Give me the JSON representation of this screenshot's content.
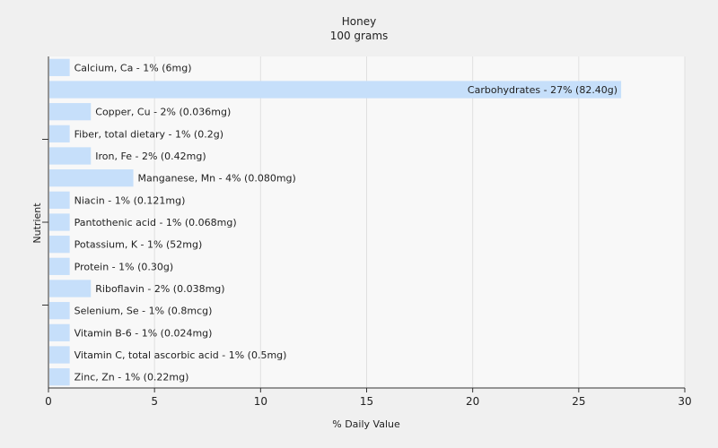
{
  "chart_data": {
    "type": "bar",
    "orientation": "horizontal",
    "title": "Honey",
    "subtitle": "100 grams",
    "xlabel": "% Daily Value",
    "ylabel": "Nutrient",
    "xlim": [
      0,
      30
    ],
    "xticks": [
      0,
      5,
      10,
      15,
      20,
      25,
      30
    ],
    "grid": true,
    "legend": "none",
    "colors": {
      "bar": "#c6dffa",
      "plot_bg": "#f8f8f8",
      "page_bg": "#f0f0f0",
      "grid": "#e0e0e0",
      "axis": "#333333"
    },
    "categories": [
      "Calcium, Ca",
      "Carbohydrates",
      "Copper, Cu",
      "Fiber, total dietary",
      "Iron, Fe",
      "Manganese, Mn",
      "Niacin",
      "Pantothenic acid",
      "Potassium, K",
      "Protein",
      "Riboflavin",
      "Selenium, Se",
      "Vitamin B-6",
      "Vitamin C, total ascorbic acid",
      "Zinc, Zn"
    ],
    "values": [
      1,
      27,
      2,
      1,
      2,
      4,
      1,
      1,
      1,
      1,
      2,
      1,
      1,
      1,
      1
    ],
    "labels": [
      "Calcium, Ca - 1% (6mg)",
      "Carbohydrates - 27% (82.40g)",
      "Copper, Cu - 2% (0.036mg)",
      "Fiber, total dietary - 1% (0.2g)",
      "Iron, Fe - 2% (0.42mg)",
      "Manganese, Mn - 4% (0.080mg)",
      "Niacin - 1% (0.121mg)",
      "Pantothenic acid - 1% (0.068mg)",
      "Potassium, K - 1% (52mg)",
      "Protein - 1% (0.30g)",
      "Riboflavin - 2% (0.038mg)",
      "Selenium, Se - 1% (0.8mcg)",
      "Vitamin B-6 - 1% (0.024mg)",
      "Vitamin C, total ascorbic acid - 1% (0.5mg)",
      "Zinc, Zn - 1% (0.22mg)"
    ]
  }
}
